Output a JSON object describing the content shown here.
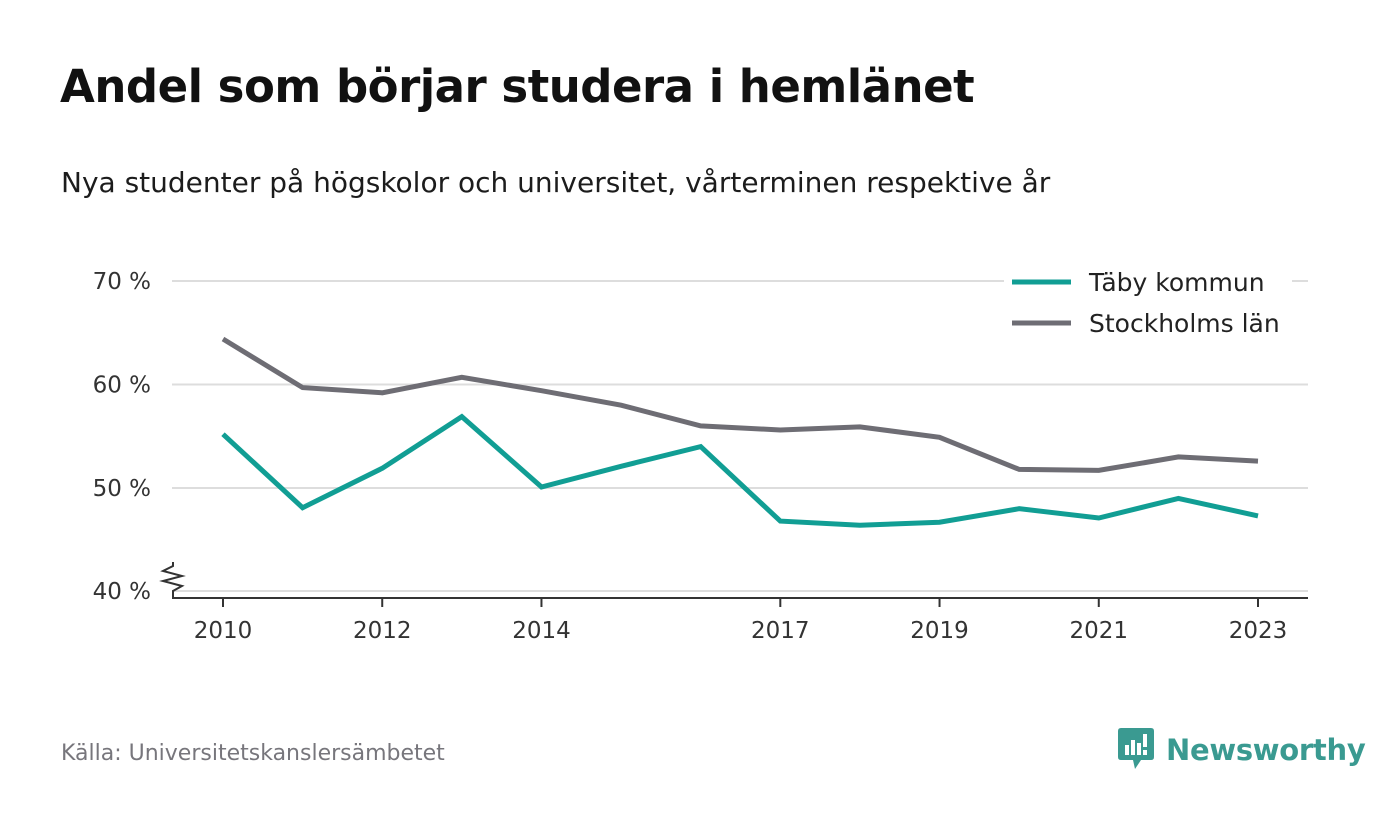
{
  "header": {
    "title": "Andel som börjar studera i hemlänet",
    "subtitle": "Nya studenter på högskolor och universitet, vårterminen respektive år"
  },
  "footer": {
    "source": "Källa: Universitetskanslersämbetet",
    "brand": "Newsworthy"
  },
  "colors": {
    "taby": "#119e94",
    "stockholm": "#6e6d74",
    "grid": "#dddddd",
    "brand": "#3a9a91"
  },
  "chart_data": {
    "type": "line",
    "x": [
      2010,
      2011,
      2012,
      2013,
      2014,
      2015,
      2016,
      2017,
      2018,
      2019,
      2020,
      2021,
      2022,
      2023
    ],
    "x_tick_values": [
      2010,
      2012,
      2014,
      2017,
      2019,
      2021,
      2023
    ],
    "x_tick_labels": [
      "2010",
      "2012",
      "2014",
      "2017",
      "2019",
      "2021",
      "2023"
    ],
    "y_tick_values": [
      40,
      50,
      60,
      70
    ],
    "y_tick_labels": [
      "40 %",
      "50 %",
      "60 %",
      "70 %"
    ],
    "ylim": [
      40,
      70
    ],
    "y_axis_break": true,
    "grid": true,
    "legend_position": "top-right",
    "series": [
      {
        "name": "Täby kommun",
        "color": "#119e94",
        "values": [
          55.2,
          48.1,
          51.9,
          56.9,
          50.1,
          52.1,
          54.0,
          46.8,
          46.4,
          46.7,
          48.0,
          47.1,
          49.0,
          47.3
        ]
      },
      {
        "name": "Stockholms län",
        "color": "#6e6d74",
        "values": [
          64.4,
          59.7,
          59.2,
          60.7,
          59.4,
          58.0,
          56.0,
          55.6,
          55.9,
          54.9,
          51.8,
          51.7,
          53.0,
          52.6
        ]
      }
    ]
  }
}
